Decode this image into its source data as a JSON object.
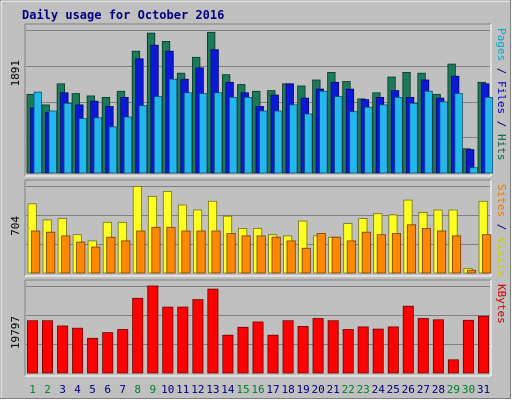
{
  "chart_data": {
    "type": "bar",
    "title": "Daily usage for October 2016",
    "days": [
      "1",
      "2",
      "3",
      "4",
      "5",
      "6",
      "7",
      "8",
      "9",
      "10",
      "11",
      "12",
      "13",
      "14",
      "15",
      "16",
      "17",
      "18",
      "19",
      "20",
      "21",
      "22",
      "23",
      "24",
      "25",
      "26",
      "27",
      "28",
      "29",
      "30",
      "31"
    ],
    "weekend_days": [
      "1",
      "2",
      "8",
      "9",
      "15",
      "16",
      "22",
      "23",
      "29",
      "30"
    ],
    "panels": [
      {
        "id": "hits",
        "ymax_label": "1891",
        "ymax": 1891,
        "right_labels": [
          {
            "text": "Pages",
            "color": "#00aacc"
          },
          {
            "text": " / ",
            "color": "#000080"
          },
          {
            "text": "Files",
            "color": "#0000cc"
          },
          {
            "text": " / ",
            "color": "#000080"
          },
          {
            "text": "Hits",
            "color": "#006644"
          }
        ],
        "series": [
          {
            "name": "Hits",
            "color": "#1a7a5a",
            "values": [
              1040,
              900,
              1180,
              1050,
              1020,
              1000,
              1080,
              1610,
              1850,
              1740,
              1320,
              1530,
              1860,
              1300,
              1170,
              1080,
              1090,
              1180,
              1150,
              1230,
              1330,
              1210,
              980,
              1060,
              1270,
              1330,
              1320,
              1040,
              1440,
              320,
              1200
            ]
          },
          {
            "name": "Files",
            "color": "#0c18d8",
            "values": [
              860,
              800,
              1060,
              900,
              950,
              880,
              1000,
              1510,
              1690,
              1610,
              1240,
              1390,
              1630,
              1200,
              1060,
              880,
              1030,
              1180,
              990,
              1110,
              1200,
              1110,
              970,
              1000,
              1090,
              1000,
              1230,
              990,
              1280,
              310,
              1180
            ]
          },
          {
            "name": "Pages",
            "color": "#22b8ee",
            "values": [
              1070,
              820,
              920,
              720,
              730,
              610,
              740,
              890,
              1010,
              1240,
              1060,
              1050,
              1060,
              1000,
              1000,
              820,
              820,
              900,
              780,
              1080,
              1010,
              810,
              870,
              900,
              1000,
              920,
              1080,
              940,
              1050,
              70,
              1000
            ]
          }
        ]
      },
      {
        "id": "visits",
        "ymax_label": "704",
        "ymax": 704,
        "right_labels": [
          {
            "text": "Sites",
            "color": "#ee7700"
          },
          {
            "text": " / ",
            "color": "#000080"
          },
          {
            "text": "Visits",
            "color": "#cccc00"
          }
        ],
        "series": [
          {
            "name": "Visits",
            "color": "#ffff22",
            "values": [
              560,
              430,
              440,
              310,
              260,
              410,
              410,
              700,
              620,
              660,
              550,
              510,
              580,
              460,
              360,
              360,
              310,
              300,
              420,
              300,
              290,
              400,
              440,
              480,
              470,
              590,
              490,
              510,
              510,
              37,
              580
            ]
          },
          {
            "name": "Sites",
            "color": "#ff8800",
            "values": [
              340,
              330,
              300,
              250,
              210,
              290,
              260,
              340,
              370,
              370,
              340,
              340,
              340,
              320,
              300,
              300,
              290,
              260,
              200,
              320,
              290,
              260,
              330,
              310,
              320,
              390,
              360,
              340,
              300,
              23,
              310
            ]
          }
        ]
      },
      {
        "id": "kbytes",
        "ymax_label": "19797",
        "ymax": 19797,
        "right_labels": [
          {
            "text": "KBytes",
            "color": "#cc0000"
          }
        ],
        "series": [
          {
            "name": "KBytes",
            "color": "#ff0000",
            "values": [
              11900,
              11900,
              10700,
              10200,
              7900,
              9200,
              9900,
              17000,
              19797,
              15000,
              15000,
              16700,
              19100,
              8600,
              10400,
              11600,
              8600,
              11900,
              10600,
              12400,
              11900,
              9900,
              10500,
              10000,
              10500,
              15200,
              12400,
              12100,
              3000,
              12000,
              12900
            ]
          }
        ]
      }
    ]
  }
}
